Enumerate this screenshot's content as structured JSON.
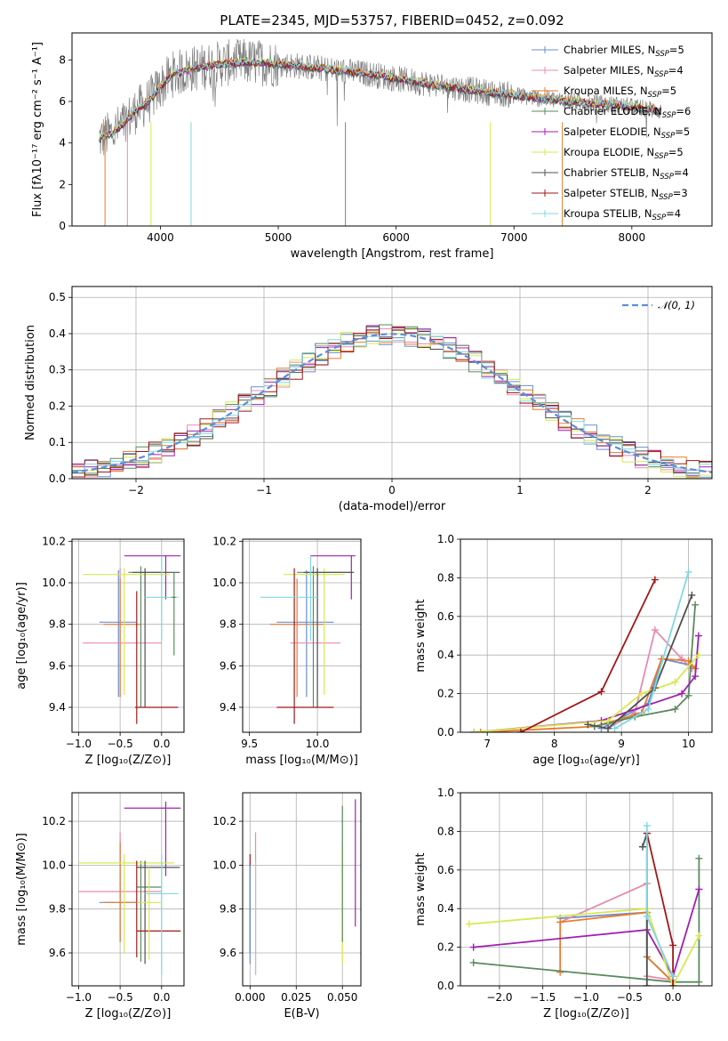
{
  "colors": {
    "Chabrier MILES": "#6b8fcf",
    "Salpeter MILES": "#e88bb0",
    "Kroupa MILES": "#e87b30",
    "Chabrier ELODIE": "#5b8a5e",
    "Salpeter ELODIE": "#a020b0",
    "Kroupa ELODIE": "#d8e850",
    "Chabrier STELIB": "#505050",
    "Salpeter STELIB": "#a01818",
    "Kroupa STELIB": "#80d8e0",
    "gray": "#808080",
    "normal": "#5b8fd8"
  },
  "chart_data": [
    {
      "id": "spectrum",
      "type": "line",
      "title": "PLATE=2345, MJD=53757, FIBERID=0452, z=0.092",
      "xlabel": "wavelength [Angstrom, rest frame]",
      "ylabel": "Flux [fλ10⁻¹⁷ erg cm⁻² s⁻¹ A⁻¹]",
      "xlim": [
        3250,
        8680
      ],
      "ylim": [
        0,
        9.3
      ],
      "xticks": [
        "4000",
        "5000",
        "6000",
        "7000",
        "8000"
      ],
      "yticks": [
        "0",
        "2",
        "4",
        "6",
        "8"
      ],
      "legend_position": "top-right",
      "legend": [
        {
          "label": "Chabrier MILES, N",
          "sub": "SSP",
          "val": "=5"
        },
        {
          "label": "Salpeter MILES, N",
          "sub": "SSP",
          "val": "=4"
        },
        {
          "label": "Kroupa MILES, N",
          "sub": "SSP",
          "val": "=5"
        },
        {
          "label": "Chabrier ELODIE, N",
          "sub": "SSP",
          "val": "=6"
        },
        {
          "label": "Salpeter ELODIE, N",
          "sub": "SSP",
          "val": "=5"
        },
        {
          "label": "Kroupa ELODIE, N",
          "sub": "SSP",
          "val": "=5"
        },
        {
          "label": "Chabrier STELIB, N",
          "sub": "SSP",
          "val": "=4"
        },
        {
          "label": "Salpeter STELIB, N",
          "sub": "SSP",
          "val": "=3"
        },
        {
          "label": "Kroupa STELIB, N",
          "sub": "SSP",
          "val": "=4"
        }
      ],
      "continuum": [
        [
          3480,
          4.2
        ],
        [
          3600,
          4.5
        ],
        [
          3700,
          5.0
        ],
        [
          3800,
          5.6
        ],
        [
          3900,
          6.0
        ],
        [
          4000,
          6.7
        ],
        [
          4100,
          7.3
        ],
        [
          4300,
          7.6
        ],
        [
          4500,
          7.8
        ],
        [
          4700,
          7.9
        ],
        [
          4900,
          7.85
        ],
        [
          5200,
          7.7
        ],
        [
          5500,
          7.5
        ],
        [
          5800,
          7.3
        ],
        [
          6100,
          7.0
        ],
        [
          6400,
          6.75
        ],
        [
          6700,
          6.5
        ],
        [
          7000,
          6.3
        ],
        [
          7300,
          6.1
        ],
        [
          7600,
          5.95
        ],
        [
          7900,
          5.8
        ],
        [
          8200,
          5.6
        ],
        [
          8250,
          5.55
        ]
      ]
    },
    {
      "id": "residuals",
      "type": "histogram",
      "xlabel": "(data-model)/error",
      "ylabel": "Normed distribution",
      "xlim": [
        -2.5,
        2.5
      ],
      "ylim": [
        0,
        0.53
      ],
      "xticks": [
        "−2",
        "−1",
        "0",
        "1",
        "2"
      ],
      "yticks": [
        "0.0",
        "0.1",
        "0.2",
        "0.3",
        "0.4",
        "0.5"
      ],
      "legend": "𝒩(0, 1)",
      "bin_width": 0.1
    },
    {
      "id": "age-Z",
      "type": "errorbar",
      "xlabel": "Z [log₁₀(Z/Z⊙)]",
      "ylabel": "age  [log₁₀(age/yr)]",
      "xlim": [
        -1.08,
        0.27
      ],
      "ylim": [
        9.28,
        10.21
      ],
      "xticks": [
        "−1.0",
        "−0.5",
        "0.0"
      ],
      "yticks": [
        "9.4",
        "9.6",
        "9.8",
        "10.0",
        "10.2"
      ]
    },
    {
      "id": "age-mass",
      "type": "errorbar",
      "xlabel": "mass [log₁₀(M/M⊙)]",
      "xlim": [
        9.45,
        10.32
      ],
      "ylim": [
        9.28,
        10.21
      ],
      "xticks": [
        "9.5",
        "10.0"
      ],
      "yticks": [
        "9.4",
        "9.6",
        "9.8",
        "10.0",
        "10.2"
      ]
    },
    {
      "id": "weight-age",
      "type": "line",
      "xlabel": "age  [log₁₀(age/yr)]",
      "ylabel": "mass weight",
      "xlim": [
        6.6,
        10.35
      ],
      "ylim": [
        0,
        1
      ],
      "xticks": [
        "7",
        "8",
        "9",
        "10"
      ],
      "yticks": [
        "0.0",
        "0.2",
        "0.4",
        "0.6",
        "0.8",
        "1.0"
      ]
    },
    {
      "id": "mass-Z",
      "type": "errorbar",
      "xlabel": "Z [log₁₀(Z/Z⊙)]",
      "ylabel": "mass [log₁₀(M/M⊙)]",
      "xlim": [
        -1.08,
        0.27
      ],
      "ylim": [
        9.45,
        10.33
      ],
      "xticks": [
        "−1.0",
        "−0.5",
        "0.0"
      ],
      "yticks": [
        "9.6",
        "9.8",
        "10.0",
        "10.2"
      ]
    },
    {
      "id": "mass-EBV",
      "type": "errorbar",
      "xlabel": "E(B-V)",
      "xlim": [
        -0.004,
        0.06
      ],
      "ylim": [
        9.45,
        10.33
      ],
      "xticks": [
        "0.000",
        "0.025",
        "0.050"
      ],
      "yticks": [
        "9.6",
        "9.8",
        "10.0",
        "10.2"
      ]
    },
    {
      "id": "weight-Z",
      "type": "line",
      "xlabel": "Z [log₁₀(Z/Z⊙)]",
      "ylabel": "mass weight",
      "xlim": [
        -2.45,
        0.45
      ],
      "ylim": [
        0,
        1
      ],
      "xticks": [
        "−2.0",
        "−1.5",
        "−1.0",
        "−0.5",
        "0.0"
      ],
      "yticks": [
        "0.0",
        "0.2",
        "0.4",
        "0.6",
        "0.8",
        "1.0"
      ]
    }
  ]
}
